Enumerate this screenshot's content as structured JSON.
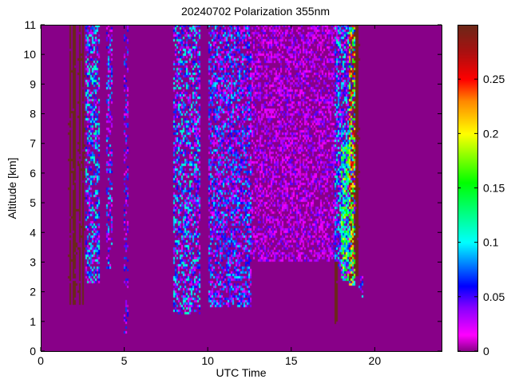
{
  "chart_data": {
    "type": "heatmap",
    "title": "20240702 Polarization 355nm",
    "xlabel": "UTC Time",
    "ylabel": "Altitude [km]",
    "xlim": [
      0,
      24
    ],
    "ylim": [
      0,
      11
    ],
    "xticks": [
      0,
      5,
      10,
      15,
      20
    ],
    "yticks": [
      0,
      1,
      2,
      3,
      4,
      5,
      6,
      7,
      8,
      9,
      10,
      11
    ],
    "colorbar": {
      "range": [
        0,
        0.3
      ],
      "ticks": [
        0,
        0.05,
        0.1,
        0.15,
        0.2,
        0.25
      ],
      "tick_labels": [
        "0",
        "0.05",
        "0.1",
        "0.15",
        "0.2",
        "0.25"
      ],
      "colormap": [
        [
          0,
          "#880088"
        ],
        [
          0.015,
          "#ff00ff"
        ],
        [
          0.04,
          "#8800ff"
        ],
        [
          0.06,
          "#0000ff"
        ],
        [
          0.1,
          "#00ffff"
        ],
        [
          0.155,
          "#00ff00"
        ],
        [
          0.2,
          "#ffff00"
        ],
        [
          0.23,
          "#ff8800"
        ],
        [
          0.25,
          "#ff0000"
        ],
        [
          0.275,
          "#aa1010"
        ],
        [
          0.3,
          "#6b2818"
        ]
      ]
    },
    "background_value": 0,
    "regions": [
      {
        "t": [
          1.6,
          2.7
        ],
        "z": [
          1.6,
          11
        ],
        "mean": 0.3,
        "density": 0.55
      },
      {
        "t": [
          2.7,
          3.5
        ],
        "z": [
          2.3,
          11
        ],
        "mean": 0.06,
        "density": 0.6
      },
      {
        "t": [
          3.9,
          4.3
        ],
        "z": [
          2.8,
          11
        ],
        "mean": 0.05,
        "density": 0.45
      },
      {
        "t": [
          5.0,
          5.3
        ],
        "z": [
          0.6,
          11
        ],
        "mean": 0.04,
        "density": 0.35
      },
      {
        "t": [
          7.9,
          9.6
        ],
        "z": [
          1.2,
          11
        ],
        "mean": 0.06,
        "density": 0.55
      },
      {
        "t": [
          10.0,
          12.6
        ],
        "z": [
          1.5,
          11
        ],
        "mean": 0.05,
        "density": 0.6
      },
      {
        "t": [
          12.6,
          17.6
        ],
        "z": [
          3.0,
          11
        ],
        "mean": 0.025,
        "density": 0.5
      },
      {
        "t": [
          17.6,
          18.5
        ],
        "z": [
          2.8,
          11
        ],
        "mean": 0.06,
        "density": 0.7
      },
      {
        "t": [
          18.0,
          18.7
        ],
        "z": [
          2.4,
          7
        ],
        "mean": 0.1,
        "density": 0.85
      },
      {
        "t": [
          18.5,
          18.8
        ],
        "z": [
          2.2,
          11
        ],
        "mean": 0.17,
        "density": 0.85
      },
      {
        "t": [
          18.8,
          19.1
        ],
        "z": [
          2.5,
          11
        ],
        "mean": 0.3,
        "density": 0.9
      },
      {
        "t": [
          19.0,
          19.3
        ],
        "z": [
          1.8,
          2.6
        ],
        "mean": 0.05,
        "density": 0.5
      },
      {
        "t": [
          17.6,
          17.8
        ],
        "z": [
          0.9,
          3.0
        ],
        "mean": 0.3,
        "density": 1.0
      }
    ]
  }
}
